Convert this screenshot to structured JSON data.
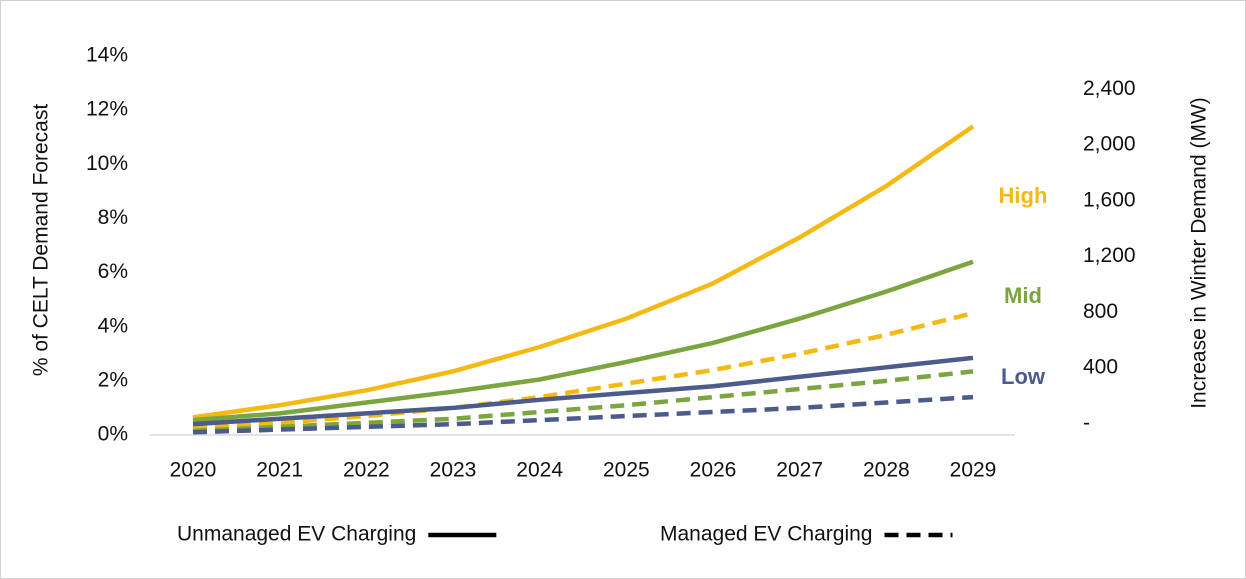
{
  "chart_data": {
    "type": "line",
    "y_label": "% of CELT Demand Forecast",
    "y2_label": "Increase in Winter Demand (MW)",
    "categories": [
      "2020",
      "2021",
      "2022",
      "2023",
      "2024",
      "2025",
      "2026",
      "2027",
      "2028",
      "2029"
    ],
    "ylim": [
      0,
      14
    ],
    "yticks": [
      {
        "value": 0,
        "label": "0%"
      },
      {
        "value": 2,
        "label": "2%"
      },
      {
        "value": 4,
        "label": "4%"
      },
      {
        "value": 6,
        "label": "6%"
      },
      {
        "value": 8,
        "label": "8%"
      },
      {
        "value": 10,
        "label": "10%"
      },
      {
        "value": 12,
        "label": "12%"
      },
      {
        "value": 14,
        "label": "14%"
      }
    ],
    "y2lim": [
      -80,
      2640
    ],
    "y2ticks": [
      {
        "value": 0,
        "label": "-"
      },
      400,
      800,
      {
        "value": 1200,
        "label": "1,200"
      },
      {
        "value": 1600,
        "label": "1,600"
      },
      {
        "value": 2000,
        "label": "2,000"
      },
      {
        "value": 2400,
        "label": "2,400"
      }
    ],
    "scenarios": [
      {
        "name": "High",
        "color": "#f5b914",
        "unmanaged": [
          0.65,
          1.1,
          1.65,
          2.35,
          3.25,
          4.3,
          5.6,
          7.3,
          9.2,
          11.4
        ],
        "managed": [
          0.25,
          0.45,
          0.7,
          1.0,
          1.4,
          1.9,
          2.4,
          3.0,
          3.7,
          4.5
        ]
      },
      {
        "name": "Mid",
        "color": "#7ba53e",
        "unmanaged": [
          0.55,
          0.8,
          1.2,
          1.6,
          2.05,
          2.7,
          3.4,
          4.3,
          5.3,
          6.4
        ],
        "managed": [
          0.15,
          0.3,
          0.45,
          0.6,
          0.85,
          1.1,
          1.4,
          1.7,
          2.0,
          2.35
        ]
      },
      {
        "name": "Low",
        "color": "#4a5b8c",
        "unmanaged": [
          0.4,
          0.6,
          0.8,
          1.0,
          1.3,
          1.55,
          1.8,
          2.15,
          2.5,
          2.85
        ],
        "managed": [
          0.1,
          0.2,
          0.3,
          0.4,
          0.55,
          0.7,
          0.85,
          1.0,
          1.2,
          1.4
        ]
      }
    ],
    "legend": [
      {
        "label": "Unmanaged EV Charging",
        "key": "unmanaged",
        "dashed": false
      },
      {
        "label": "Managed EV Charging",
        "key": "managed",
        "dashed": true
      }
    ]
  }
}
